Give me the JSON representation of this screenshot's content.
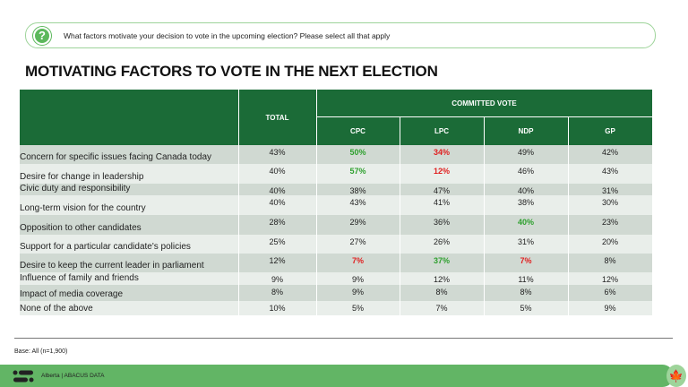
{
  "question": "What factors motivate your decision to vote in the upcoming election? Please select all that apply",
  "title": "MOTIVATING FACTORS TO VOTE IN THE NEXT ELECTION",
  "header": {
    "total": "TOTAL",
    "group": "COMMITTED VOTE",
    "cols": [
      "CPC",
      "LPC",
      "NDP",
      "GP"
    ]
  },
  "rows": [
    {
      "label": "Concern for specific issues facing Canada today",
      "values": [
        "43%",
        "50%",
        "34%",
        "49%",
        "42%"
      ],
      "hl": [
        "",
        "green",
        "red",
        "",
        ""
      ]
    },
    {
      "label": "Desire for change in leadership",
      "values": [
        "40%",
        "57%",
        "12%",
        "46%",
        "43%"
      ],
      "hl": [
        "",
        "green",
        "red",
        "",
        ""
      ]
    },
    {
      "label": "Civic duty and responsibility",
      "values": [
        "40%",
        "38%",
        "47%",
        "40%",
        "31%"
      ],
      "hl": [
        "",
        "",
        "",
        "",
        ""
      ]
    },
    {
      "label": "Long-term vision for the country",
      "values": [
        "40%",
        "43%",
        "41%",
        "38%",
        "30%"
      ],
      "hl": [
        "",
        "",
        "",
        "",
        ""
      ]
    },
    {
      "label": "Opposition to other candidates",
      "values": [
        "28%",
        "29%",
        "36%",
        "40%",
        "23%"
      ],
      "hl": [
        "",
        "",
        "",
        "green",
        ""
      ]
    },
    {
      "label": "Support for a particular candidate's policies",
      "values": [
        "25%",
        "27%",
        "26%",
        "31%",
        "20%"
      ],
      "hl": [
        "",
        "",
        "",
        "",
        ""
      ]
    },
    {
      "label": "Desire to keep the current leader in parliament",
      "values": [
        "12%",
        "7%",
        "37%",
        "7%",
        "8%"
      ],
      "hl": [
        "",
        "red",
        "green",
        "red",
        ""
      ]
    },
    {
      "label": "Influence of family and friends",
      "values": [
        "9%",
        "9%",
        "12%",
        "11%",
        "12%"
      ],
      "hl": [
        "",
        "",
        "",
        "",
        ""
      ]
    },
    {
      "label": "Impact of media coverage",
      "values": [
        "8%",
        "9%",
        "8%",
        "8%",
        "6%"
      ],
      "hl": [
        "",
        "",
        "",
        "",
        ""
      ]
    },
    {
      "label": "None of the above",
      "values": [
        "10%",
        "5%",
        "7%",
        "5%",
        "9%"
      ],
      "hl": [
        "",
        "",
        "",
        "",
        ""
      ]
    }
  ],
  "base": "Base: All (n=1,900)",
  "footer": "Alberta  |  ABACUS DATA",
  "colors": {
    "header": "#1b6b37",
    "green": "#2ea02e",
    "red": "#e02020",
    "footer": "#62b565"
  }
}
